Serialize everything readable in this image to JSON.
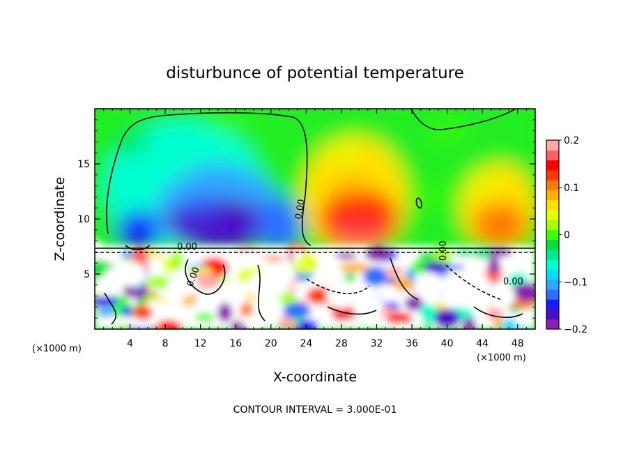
{
  "chart_data": {
    "type": "heatmap",
    "title": "disturbunce of potential temperature",
    "xlabel": "X-coordinate",
    "ylabel": "Z-coordinate",
    "x_unit": "(×1000 m)",
    "y_unit": "(×1000 m)",
    "xlim": [
      0,
      50
    ],
    "ylim": [
      0,
      20
    ],
    "x_ticks": [
      4,
      8,
      12,
      16,
      20,
      24,
      28,
      32,
      36,
      40,
      44,
      48
    ],
    "y_ticks": [
      5,
      10,
      15
    ],
    "colorbar": {
      "min": -0.2,
      "max": 0.2,
      "tick_labels": [
        "0.2",
        "0.1",
        "0",
        "−0.1",
        "−0.2"
      ],
      "tick_values": [
        0.2,
        0.1,
        0,
        -0.1,
        -0.2
      ],
      "colors": [
        "#8a1fb0",
        "#4b0cc8",
        "#1a1aff",
        "#2d70ff",
        "#2fa8ff",
        "#00dcff",
        "#00ffd0",
        "#00e890",
        "#00e040",
        "#3cff00",
        "#a6ff00",
        "#e6ff00",
        "#ffe000",
        "#ffb000",
        "#ff7a00",
        "#ff3a00",
        "#ff0000",
        "#ff6060",
        "#ffa8a8"
      ]
    },
    "contour_labels": [
      "0.00",
      "0.00",
      "0.00",
      "0.00",
      "0.00"
    ],
    "annotation": "CONTOUR INTERVAL = 3.000E-01",
    "regions": [
      {
        "x": 8,
        "z": 14,
        "value": -0.07
      },
      {
        "x": 12,
        "z": 11,
        "value": -0.13
      },
      {
        "x": 14,
        "z": 9,
        "value": -0.17
      },
      {
        "x": 20,
        "z": 9,
        "value": -0.12
      },
      {
        "x": 5,
        "z": 8.5,
        "value": -0.14
      },
      {
        "x": 4,
        "z": 17,
        "value": -0.02
      },
      {
        "x": 30,
        "z": 10,
        "value": 0.14
      },
      {
        "x": 29,
        "z": 13,
        "value": 0.09
      },
      {
        "x": 28,
        "z": 16,
        "value": 0.04
      },
      {
        "x": 46,
        "z": 10,
        "value": 0.1
      },
      {
        "x": 44,
        "z": 13,
        "value": 0.05
      },
      {
        "x": 38,
        "z": 12,
        "value": 0.0
      },
      {
        "x": 40,
        "z": 18,
        "value": 0.0
      },
      {
        "x": 15,
        "z": 19,
        "value": 0.0
      }
    ]
  }
}
